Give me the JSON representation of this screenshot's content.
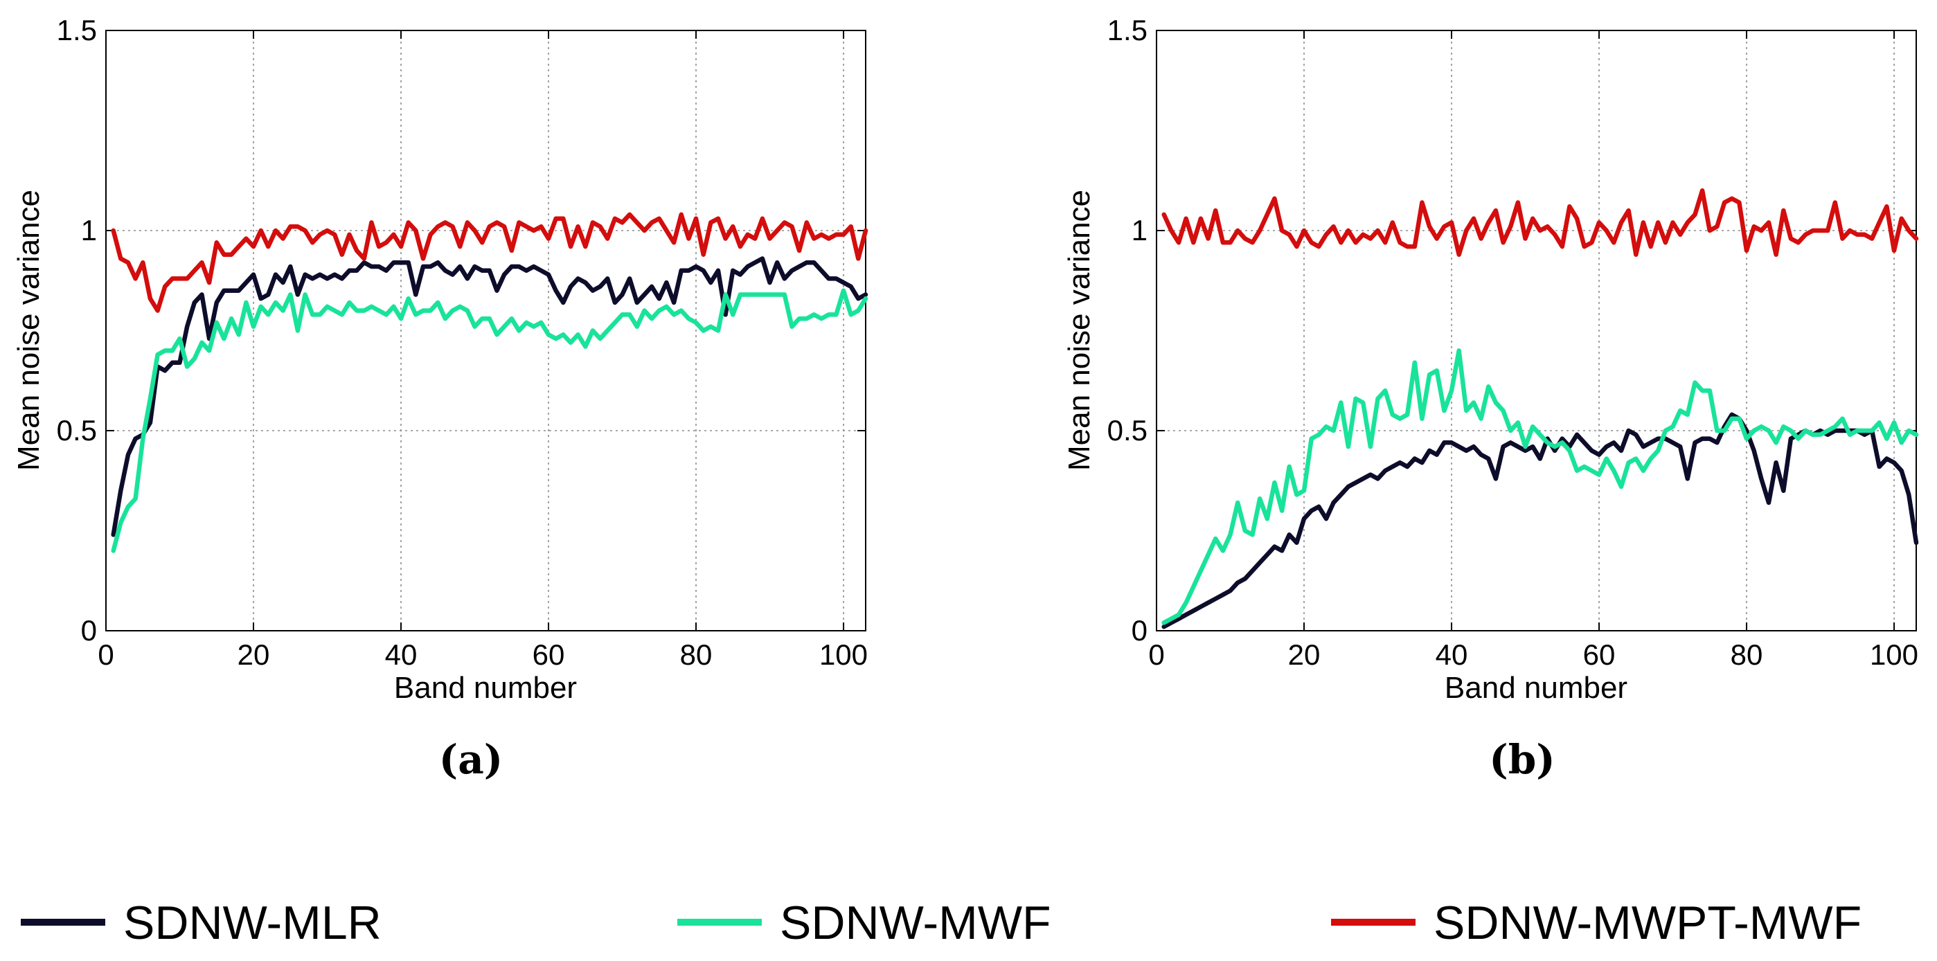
{
  "chart_data": [
    {
      "type": "line",
      "panel_label": "(a)",
      "xlabel": "Band number",
      "ylabel": "Mean noise variance",
      "xlim": [
        0,
        103
      ],
      "ylim": [
        0,
        1.5
      ],
      "xticks": [
        0,
        20,
        40,
        60,
        80,
        100
      ],
      "yticks": [
        0,
        0.5,
        1,
        1.5
      ],
      "xtick_labels": [
        "0",
        "20",
        "40",
        "60",
        "80",
        "100"
      ],
      "ytick_labels": [
        "0",
        "0.5",
        "1",
        "1.5"
      ],
      "grid": true,
      "x": [
        1,
        2,
        3,
        4,
        5,
        6,
        7,
        8,
        9,
        10,
        11,
        12,
        13,
        14,
        15,
        16,
        17,
        18,
        19,
        20,
        21,
        22,
        23,
        24,
        25,
        26,
        27,
        28,
        29,
        30,
        31,
        32,
        33,
        34,
        35,
        36,
        37,
        38,
        39,
        40,
        41,
        42,
        43,
        44,
        45,
        46,
        47,
        48,
        49,
        50,
        51,
        52,
        53,
        54,
        55,
        56,
        57,
        58,
        59,
        60,
        61,
        62,
        63,
        64,
        65,
        66,
        67,
        68,
        69,
        70,
        71,
        72,
        73,
        74,
        75,
        76,
        77,
        78,
        79,
        80,
        81,
        82,
        83,
        84,
        85,
        86,
        87,
        88,
        89,
        90,
        91,
        92,
        93,
        94,
        95,
        96,
        97,
        98,
        99,
        100,
        101,
        102,
        103
      ],
      "series": [
        {
          "name": "SDNW-MLR",
          "color": "#0d0d2b",
          "values": [
            0.24,
            0.35,
            0.44,
            0.48,
            0.49,
            0.52,
            0.66,
            0.65,
            0.67,
            0.67,
            0.76,
            0.82,
            0.84,
            0.73,
            0.82,
            0.85,
            0.85,
            0.85,
            0.87,
            0.89,
            0.83,
            0.84,
            0.89,
            0.87,
            0.91,
            0.84,
            0.89,
            0.88,
            0.89,
            0.88,
            0.89,
            0.88,
            0.9,
            0.9,
            0.92,
            0.91,
            0.91,
            0.9,
            0.92,
            0.92,
            0.92,
            0.84,
            0.91,
            0.91,
            0.92,
            0.9,
            0.89,
            0.91,
            0.88,
            0.91,
            0.9,
            0.9,
            0.85,
            0.89,
            0.91,
            0.91,
            0.9,
            0.91,
            0.9,
            0.89,
            0.85,
            0.82,
            0.86,
            0.88,
            0.87,
            0.85,
            0.86,
            0.88,
            0.82,
            0.84,
            0.88,
            0.82,
            0.84,
            0.86,
            0.83,
            0.87,
            0.82,
            0.9,
            0.9,
            0.91,
            0.9,
            0.87,
            0.9,
            0.79,
            0.9,
            0.89,
            0.91,
            0.92,
            0.93,
            0.87,
            0.92,
            0.88,
            0.9,
            0.91,
            0.92,
            0.92,
            0.9,
            0.88,
            0.88,
            0.87,
            0.86,
            0.83,
            0.84
          ]
        },
        {
          "name": "SDNW-MWF",
          "color": "#19e39a",
          "values": [
            0.2,
            0.27,
            0.31,
            0.33,
            0.48,
            0.58,
            0.69,
            0.7,
            0.7,
            0.73,
            0.66,
            0.68,
            0.72,
            0.7,
            0.77,
            0.73,
            0.78,
            0.74,
            0.82,
            0.76,
            0.81,
            0.79,
            0.82,
            0.8,
            0.84,
            0.75,
            0.84,
            0.79,
            0.79,
            0.81,
            0.8,
            0.79,
            0.82,
            0.8,
            0.8,
            0.81,
            0.8,
            0.79,
            0.81,
            0.78,
            0.83,
            0.79,
            0.8,
            0.8,
            0.82,
            0.78,
            0.8,
            0.81,
            0.8,
            0.76,
            0.78,
            0.78,
            0.74,
            0.76,
            0.78,
            0.75,
            0.77,
            0.76,
            0.77,
            0.74,
            0.73,
            0.74,
            0.72,
            0.74,
            0.71,
            0.75,
            0.73,
            0.75,
            0.77,
            0.79,
            0.79,
            0.76,
            0.8,
            0.78,
            0.8,
            0.81,
            0.79,
            0.8,
            0.78,
            0.77,
            0.75,
            0.76,
            0.75,
            0.84,
            0.79,
            0.84,
            0.84,
            0.84,
            0.84,
            0.84,
            0.84,
            0.84,
            0.76,
            0.78,
            0.78,
            0.79,
            0.78,
            0.79,
            0.79,
            0.85,
            0.79,
            0.8,
            0.83
          ]
        },
        {
          "name": "SDNW-MWPT-MWF",
          "color": "#d40d0d",
          "values": [
            1.0,
            0.93,
            0.92,
            0.88,
            0.92,
            0.83,
            0.8,
            0.86,
            0.88,
            0.88,
            0.88,
            0.9,
            0.92,
            0.87,
            0.97,
            0.94,
            0.94,
            0.96,
            0.98,
            0.96,
            1.0,
            0.96,
            1.0,
            0.98,
            1.01,
            1.01,
            1.0,
            0.97,
            0.99,
            1.0,
            0.99,
            0.94,
            0.99,
            0.95,
            0.93,
            1.02,
            0.96,
            0.97,
            0.99,
            0.96,
            1.02,
            1.0,
            0.93,
            0.99,
            1.01,
            1.02,
            1.01,
            0.96,
            1.02,
            1.0,
            0.97,
            1.01,
            1.02,
            1.01,
            0.95,
            1.02,
            1.01,
            1.0,
            1.01,
            0.98,
            1.03,
            1.03,
            0.96,
            1.01,
            0.96,
            1.02,
            1.01,
            0.98,
            1.03,
            1.02,
            1.04,
            1.02,
            1.0,
            1.02,
            1.03,
            1.0,
            0.97,
            1.04,
            0.98,
            1.03,
            0.94,
            1.02,
            1.03,
            0.98,
            1.01,
            0.96,
            0.99,
            0.98,
            1.03,
            0.98,
            1.0,
            1.02,
            1.01,
            0.95,
            1.02,
            0.98,
            0.99,
            0.98,
            0.99,
            0.99,
            1.01,
            0.93,
            1.0
          ]
        }
      ]
    },
    {
      "type": "line",
      "panel_label": "(b)",
      "xlabel": "Band number",
      "ylabel": "Mean noise variance",
      "xlim": [
        0,
        103
      ],
      "ylim": [
        0,
        1.5
      ],
      "xticks": [
        0,
        20,
        40,
        60,
        80,
        100
      ],
      "yticks": [
        0,
        0.5,
        1,
        1.5
      ],
      "xtick_labels": [
        "0",
        "20",
        "40",
        "60",
        "80",
        "100"
      ],
      "ytick_labels": [
        "0",
        "0.5",
        "1",
        "1.5"
      ],
      "grid": true,
      "x": [
        1,
        2,
        3,
        4,
        5,
        6,
        7,
        8,
        9,
        10,
        11,
        12,
        13,
        14,
        15,
        16,
        17,
        18,
        19,
        20,
        21,
        22,
        23,
        24,
        25,
        26,
        27,
        28,
        29,
        30,
        31,
        32,
        33,
        34,
        35,
        36,
        37,
        38,
        39,
        40,
        41,
        42,
        43,
        44,
        45,
        46,
        47,
        48,
        49,
        50,
        51,
        52,
        53,
        54,
        55,
        56,
        57,
        58,
        59,
        60,
        61,
        62,
        63,
        64,
        65,
        66,
        67,
        68,
        69,
        70,
        71,
        72,
        73,
        74,
        75,
        76,
        77,
        78,
        79,
        80,
        81,
        82,
        83,
        84,
        85,
        86,
        87,
        88,
        89,
        90,
        91,
        92,
        93,
        94,
        95,
        96,
        97,
        98,
        99,
        100,
        101,
        102,
        103
      ],
      "series": [
        {
          "name": "SDNW-MLR",
          "color": "#0d0d2b",
          "values": [
            0.01,
            0.02,
            0.03,
            0.04,
            0.05,
            0.06,
            0.07,
            0.08,
            0.09,
            0.1,
            0.12,
            0.13,
            0.15,
            0.17,
            0.19,
            0.21,
            0.2,
            0.24,
            0.22,
            0.28,
            0.3,
            0.31,
            0.28,
            0.32,
            0.34,
            0.36,
            0.37,
            0.38,
            0.39,
            0.38,
            0.4,
            0.41,
            0.42,
            0.41,
            0.43,
            0.42,
            0.45,
            0.44,
            0.47,
            0.47,
            0.46,
            0.45,
            0.46,
            0.44,
            0.43,
            0.38,
            0.46,
            0.47,
            0.46,
            0.45,
            0.46,
            0.43,
            0.48,
            0.45,
            0.48,
            0.46,
            0.49,
            0.47,
            0.45,
            0.44,
            0.46,
            0.47,
            0.45,
            0.5,
            0.49,
            0.46,
            0.47,
            0.48,
            0.48,
            0.47,
            0.46,
            0.38,
            0.47,
            0.48,
            0.48,
            0.47,
            0.51,
            0.54,
            0.53,
            0.5,
            0.45,
            0.38,
            0.32,
            0.42,
            0.35,
            0.48,
            0.49,
            0.5,
            0.49,
            0.5,
            0.49,
            0.5,
            0.5,
            0.5,
            0.5,
            0.49,
            0.5,
            0.41,
            0.43,
            0.42,
            0.4,
            0.34,
            0.22
          ]
        },
        {
          "name": "SDNW-MWF",
          "color": "#19e39a",
          "values": [
            0.02,
            0.03,
            0.04,
            0.07,
            0.11,
            0.15,
            0.19,
            0.23,
            0.2,
            0.24,
            0.32,
            0.25,
            0.24,
            0.33,
            0.28,
            0.37,
            0.3,
            0.41,
            0.34,
            0.35,
            0.48,
            0.49,
            0.51,
            0.5,
            0.57,
            0.46,
            0.58,
            0.57,
            0.46,
            0.58,
            0.6,
            0.54,
            0.53,
            0.54,
            0.67,
            0.53,
            0.64,
            0.65,
            0.55,
            0.6,
            0.7,
            0.55,
            0.57,
            0.53,
            0.61,
            0.57,
            0.55,
            0.5,
            0.52,
            0.46,
            0.51,
            0.49,
            0.47,
            0.46,
            0.47,
            0.45,
            0.4,
            0.41,
            0.4,
            0.39,
            0.43,
            0.4,
            0.36,
            0.42,
            0.43,
            0.4,
            0.43,
            0.45,
            0.5,
            0.51,
            0.55,
            0.54,
            0.62,
            0.6,
            0.6,
            0.5,
            0.5,
            0.53,
            0.53,
            0.48,
            0.5,
            0.51,
            0.5,
            0.47,
            0.51,
            0.5,
            0.48,
            0.5,
            0.49,
            0.49,
            0.5,
            0.51,
            0.53,
            0.49,
            0.5,
            0.5,
            0.5,
            0.52,
            0.48,
            0.52,
            0.47,
            0.5,
            0.49
          ]
        },
        {
          "name": "SDNW-MWPT-MWF",
          "color": "#d40d0d",
          "values": [
            1.04,
            1.0,
            0.97,
            1.03,
            0.97,
            1.03,
            0.98,
            1.05,
            0.97,
            0.97,
            1.0,
            0.98,
            0.97,
            1.0,
            1.04,
            1.08,
            1.0,
            0.99,
            0.96,
            1.0,
            0.97,
            0.96,
            0.99,
            1.01,
            0.97,
            1.0,
            0.97,
            0.99,
            0.98,
            1.0,
            0.97,
            1.02,
            0.97,
            0.96,
            0.96,
            1.07,
            1.01,
            0.98,
            1.01,
            1.02,
            0.94,
            1.0,
            1.03,
            0.98,
            1.02,
            1.05,
            0.97,
            1.01,
            1.07,
            0.98,
            1.03,
            1.0,
            1.01,
            0.99,
            0.96,
            1.06,
            1.03,
            0.96,
            0.97,
            1.02,
            1.0,
            0.97,
            1.02,
            1.05,
            0.94,
            1.02,
            0.96,
            1.02,
            0.97,
            1.02,
            0.99,
            1.02,
            1.04,
            1.1,
            1.0,
            1.01,
            1.07,
            1.08,
            1.07,
            0.95,
            1.01,
            1.0,
            1.02,
            0.94,
            1.05,
            0.98,
            0.97,
            0.99,
            1.0,
            1.0,
            1.0,
            1.07,
            0.98,
            1.0,
            0.99,
            0.99,
            0.98,
            1.02,
            1.06,
            0.95,
            1.03,
            1.0,
            0.98
          ]
        }
      ]
    }
  ],
  "legend": [
    {
      "label": "SDNW-MLR",
      "color": "#0d0d2b"
    },
    {
      "label": "SDNW-MWF",
      "color": "#19e39a"
    },
    {
      "label": "SDNW-MWPT-MWF",
      "color": "#d40d0d"
    }
  ]
}
